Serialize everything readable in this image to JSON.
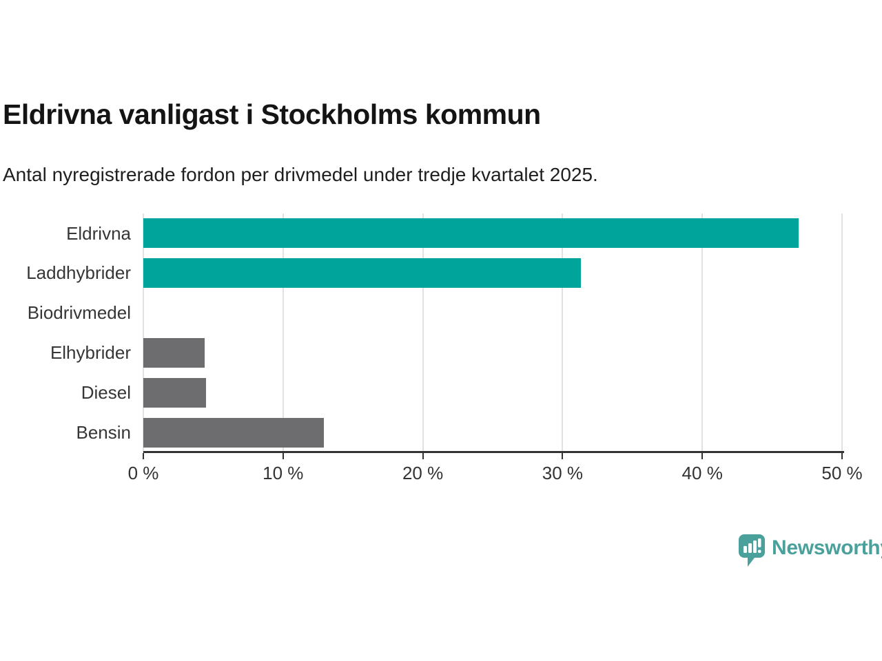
{
  "page": {
    "title": "Eldrivna vanligast i Stockholms kommun",
    "subtitle": "Antal nyregistrerade fordon per drivmedel under tredje kvartalet 2025."
  },
  "chart_data": {
    "type": "bar",
    "orientation": "horizontal",
    "title": "Eldrivna vanligast i Stockholms kommun",
    "subtitle": "Antal nyregistrerade fordon per drivmedel under tredje kvartalet 2025.",
    "categories": [
      "Eldrivna",
      "Laddhybrider",
      "Biodrivmedel",
      "Elhybrider",
      "Diesel",
      "Bensin"
    ],
    "values": [
      46.9,
      31.3,
      0,
      4.4,
      4.5,
      12.9
    ],
    "unit": "%",
    "bar_colors": [
      "#00a49b",
      "#00a49b",
      "#6d6d70",
      "#6d6d70",
      "#6d6d70",
      "#6d6d70"
    ],
    "xlim": [
      0,
      50
    ],
    "x_ticks": [
      0,
      10,
      20,
      30,
      40,
      50
    ],
    "x_tick_labels": [
      "0 %",
      "10 %",
      "20 %",
      "30 %",
      "40 %",
      "50 %"
    ],
    "grid": "vertical-gridlines-on",
    "legend": "none",
    "xlabel": "",
    "ylabel": ""
  },
  "branding": {
    "logo_text": "Newsworthy",
    "logo_icon": "newsworthy-speech-bubble-bar-chart-icon"
  },
  "colors": {
    "accent_teal": "#00a49b",
    "neutral_gray": "#6d6d70",
    "grid": "#e1e1e1",
    "axis": "#333333",
    "title_text": "#141414",
    "label_text": "#363636",
    "logo_teal": "#4aa09b"
  }
}
